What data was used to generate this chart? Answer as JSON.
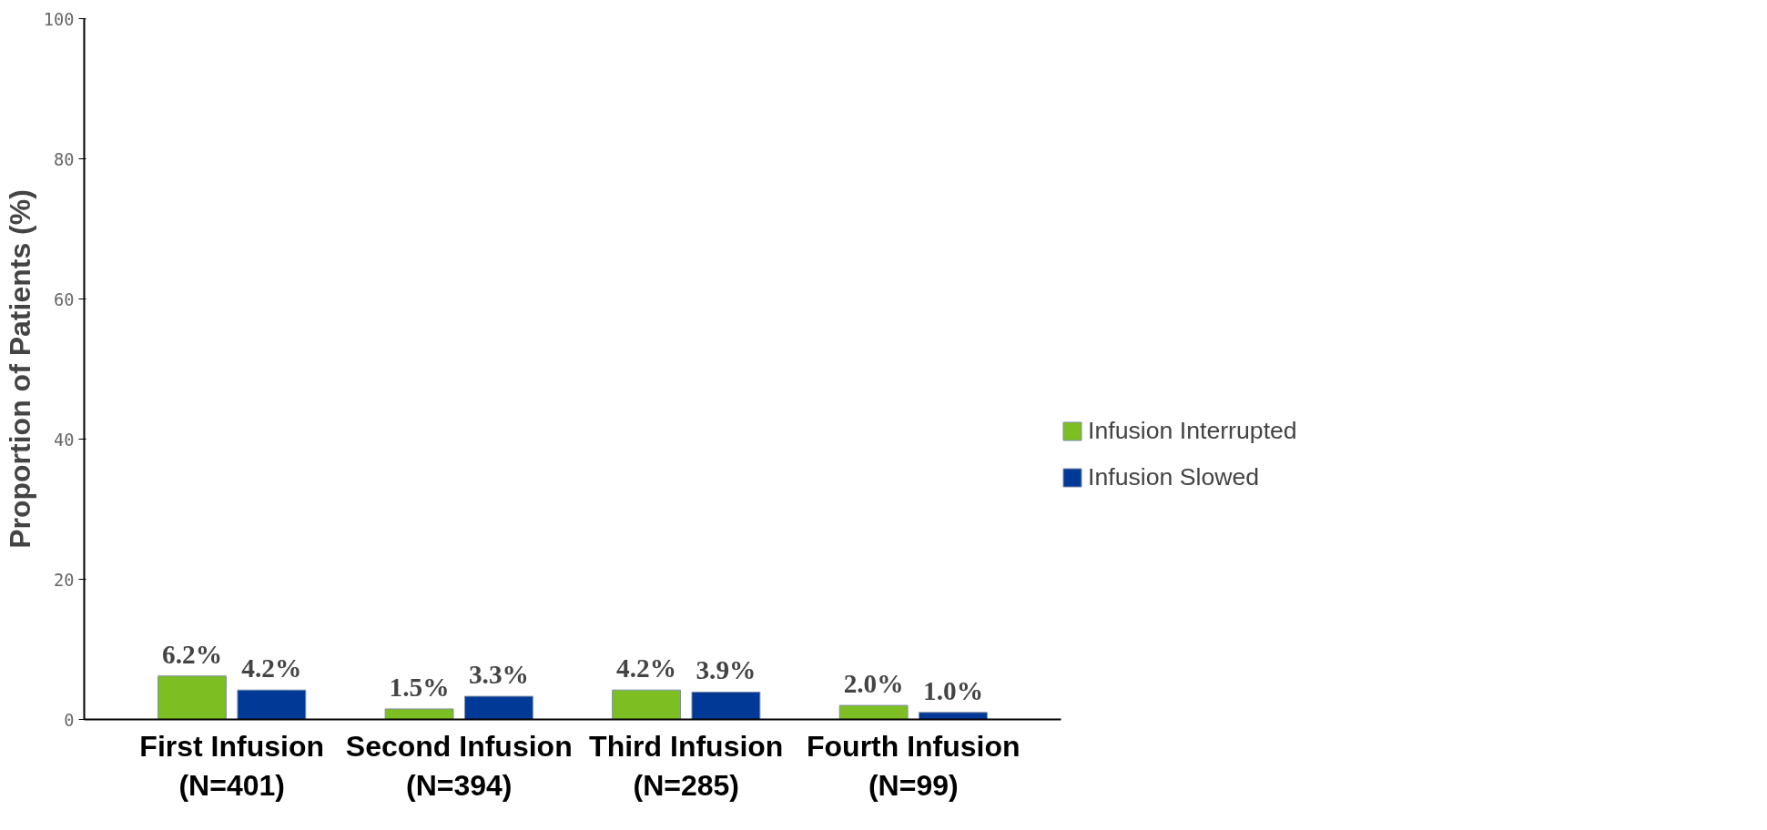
{
  "chart_data": {
    "type": "bar",
    "ylabel": "Proportion of Patients (%)",
    "categories": [
      "First Infusion\n(N=401)",
      "Second Infusion\n(N=394)",
      "Third Infusion\n(N=285)",
      "Fourth Infusion\n(N=99)"
    ],
    "series": [
      {
        "name": "Infusion Interrupted",
        "color": "#7dbf22",
        "values": [
          6.2,
          1.5,
          4.2,
          2.0
        ],
        "value_labels": [
          "6.2%",
          "1.5%",
          "4.2%",
          "2.0%"
        ]
      },
      {
        "name": "Infusion Slowed",
        "color": "#003a96",
        "values": [
          4.2,
          3.3,
          3.9,
          1.0
        ],
        "value_labels": [
          "4.2%",
          "3.3%",
          "3.9%",
          "1.0%"
        ]
      }
    ],
    "ylim": [
      0,
      100
    ],
    "yticks": [
      0,
      20,
      40,
      60,
      80,
      100
    ],
    "grid": false,
    "legend": "right"
  }
}
